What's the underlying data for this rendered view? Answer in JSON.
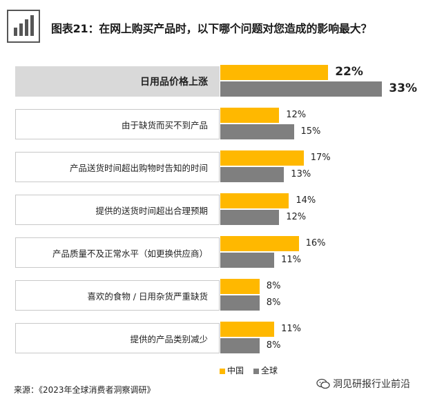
{
  "header": {
    "title": "图表21：在网上购买产品时，以下哪个问题对您造成的影响最大？"
  },
  "chart_data": {
    "type": "bar",
    "orientation": "horizontal",
    "categories": [
      "日用品价格上涨",
      "由于缺货而买不到产品",
      "产品送货时间超出购物时告知的时间",
      "提供的送货时间超出合理预期",
      "产品质量不及正常水平（如更换供应商）",
      "喜欢的食物 / 日用杂货严重缺货",
      "提供的产品类别减少"
    ],
    "series": [
      {
        "name": "中国",
        "color": "#ffb800",
        "values": [
          22,
          12,
          17,
          14,
          16,
          8,
          11
        ],
        "labels": [
          "22%",
          "12%",
          "17%",
          "14%",
          "16%",
          "8%",
          "11%"
        ]
      },
      {
        "name": "全球",
        "color": "#7f7f7f",
        "values": [
          33,
          15,
          13,
          12,
          11,
          8,
          8
        ],
        "labels": [
          "33%",
          "15%",
          "13%",
          "12%",
          "11%",
          "8%",
          "8%"
        ]
      }
    ],
    "highlighted_category": "日用品价格上涨",
    "legend_placement": "bottom-center"
  },
  "footer": {
    "source": "来源：《2023年全球消费者洞察调研》",
    "watermark": "洞见研报行业前沿"
  }
}
